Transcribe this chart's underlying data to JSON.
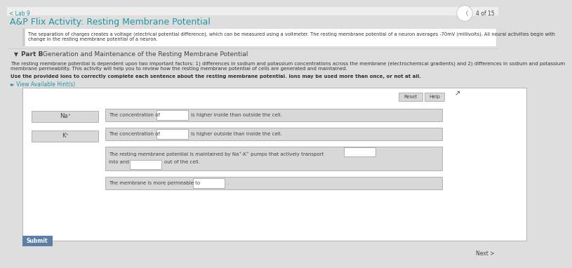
{
  "bg_color": "#dedede",
  "white": "#ffffff",
  "light_gray": "#d8d8d8",
  "mid_gray": "#aaaaaa",
  "dark_gray": "#444444",
  "text_color": "#333333",
  "teal": "#2196a0",
  "blue_btn": "#5b7fa6",
  "header_bg": "#eeeeee",
  "tab_label": "< Lab 9",
  "page_num": "4 of 15",
  "title": "A&P Flix Activity: Resting Membrane Potential",
  "intro_text1": "The separation of charges creates a voltage (electrical potential difference), which can be measured using a voltmeter. The resting membrane potential of a neuron averages -70mV (millivolts). All neural activities begin with",
  "intro_text2": "change in the resting membrane potential of a neuron.",
  "part_b_label": "Part B",
  "part_b_rest": " - Generation and Maintenance of the Resting Membrane Potential",
  "desc_text1": "The resting membrane potential is dependent upon two important factors: 1) differences in sodium and potassium concentrations across the membrane (electrochemical gradients) and 2) differences in sodium and potassium",
  "desc_text2": "membrane permeability. This activity will help you to review how the resting membrane potential of cells are generated and maintained.",
  "bold_instruction": "Use the provided ions to correctly complete each sentence about the resting membrane potential. Ions may be used more than once, or not at all.",
  "hint_link": "► View Available Hint(s)",
  "ion1": "Na⁺",
  "ion2": "K⁺",
  "sentence1_pre": "The concentration of",
  "sentence1_post": "is higher inside than outside the cell.",
  "sentence2_pre": "The concentration of",
  "sentence2_post": "is higher outside than inside the cell.",
  "sentence3a": "The resting membrane potential is maintained by Na⁺-K⁺ pumps that actively transport",
  "sentence3b": "into and",
  "sentence3c": "out of the cell.",
  "sentence4_pre": "The membrane is more permeable to",
  "sentence4_post": ".",
  "reset_btn": "Reset",
  "help_btn": "Help",
  "submit_btn": "Submit",
  "next_btn": "Next >"
}
